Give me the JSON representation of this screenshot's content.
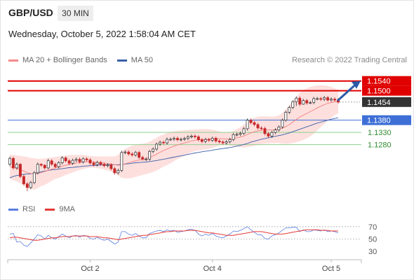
{
  "header": {
    "pair": "GBP/USD",
    "timeframe": "30 MIN",
    "datetime": "Wednesday, October 5, 2022 1:58:04 AM CET"
  },
  "legend": {
    "items": [
      {
        "label": "MA 20 + Bollinger Bands",
        "color": "#f58a8a"
      },
      {
        "label": "MA 50",
        "color": "#3b5ea8"
      }
    ],
    "credit": "Research © 2022 Trading Central"
  },
  "rsi_legend": {
    "items": [
      {
        "label": "RSI",
        "color": "#5b7ee0"
      },
      {
        "label": "9MA",
        "color": "#e53935"
      }
    ]
  },
  "chart_data": [
    {
      "type": "candlestick",
      "title": "GBP/USD",
      "ylim": [
        1.1056,
        1.1582
      ],
      "xticks": [
        {
          "label": "Oct 2",
          "index": 23
        },
        {
          "label": "Oct 4",
          "index": 58
        },
        {
          "label": "Oct 5",
          "index": 92
        }
      ],
      "levels": [
        {
          "value": 1.154,
          "label": "1.1540",
          "color": "#e00000",
          "style": "solid-tag"
        },
        {
          "value": 1.15,
          "label": "1.1500",
          "color": "#e00000",
          "style": "solid-tag"
        },
        {
          "value": 1.1454,
          "label": "1.1454",
          "color": "#333333",
          "style": "dotted-tag"
        },
        {
          "value": 1.138,
          "label": "1.1380",
          "color": "#3d6fd6",
          "style": "solid-tag"
        },
        {
          "value": 1.133,
          "label": "1.1330",
          "color": "#2e8b2e",
          "style": "text"
        },
        {
          "value": 1.128,
          "label": "1.1280",
          "color": "#2e8b2e",
          "style": "text"
        }
      ],
      "candles": {
        "open": [
          1.12,
          1.1224,
          1.1185,
          1.12,
          1.115,
          1.112,
          1.1105,
          1.1125,
          1.1165,
          1.12,
          1.1196,
          1.1185,
          1.1214,
          1.12,
          1.119,
          1.1206,
          1.1226,
          1.1214,
          1.1204,
          1.1216,
          1.122,
          1.121,
          1.1222,
          1.1218,
          1.1205,
          1.1198,
          1.1207,
          1.12,
          1.1194,
          1.1197,
          1.1182,
          1.1165,
          1.1175,
          1.1248,
          1.125,
          1.1242,
          1.1238,
          1.1248,
          1.1228,
          1.1221,
          1.1221,
          1.1252,
          1.1262,
          1.1282,
          1.129,
          1.1287,
          1.1302,
          1.1302,
          1.1306,
          1.13,
          1.1302,
          1.1305,
          1.1312,
          1.1315,
          1.1312,
          1.13,
          1.1293,
          1.1301,
          1.1298,
          1.1306,
          1.1295,
          1.1291,
          1.1287,
          1.1292,
          1.1301,
          1.1321,
          1.1322,
          1.1326,
          1.1345,
          1.138,
          1.137,
          1.1362,
          1.1348,
          1.1346,
          1.1325,
          1.1315,
          1.133,
          1.134,
          1.1352,
          1.138,
          1.1412,
          1.1432,
          1.1455,
          1.147,
          1.1445,
          1.146,
          1.145,
          1.1452,
          1.1468,
          1.1468,
          1.1465,
          1.1472,
          1.1462,
          1.1466,
          1.1462
        ],
        "close": [
          1.1224,
          1.1185,
          1.12,
          1.115,
          1.112,
          1.1105,
          1.1125,
          1.1165,
          1.12,
          1.1196,
          1.1185,
          1.1214,
          1.12,
          1.119,
          1.1206,
          1.1226,
          1.1214,
          1.1204,
          1.1216,
          1.122,
          1.121,
          1.1222,
          1.1218,
          1.1205,
          1.1198,
          1.1207,
          1.12,
          1.1194,
          1.1197,
          1.1182,
          1.1165,
          1.1175,
          1.1248,
          1.125,
          1.1242,
          1.1238,
          1.1248,
          1.1228,
          1.1221,
          1.1221,
          1.1252,
          1.1262,
          1.1282,
          1.129,
          1.1287,
          1.1302,
          1.1302,
          1.1306,
          1.13,
          1.1302,
          1.1305,
          1.1312,
          1.1315,
          1.1312,
          1.13,
          1.1293,
          1.1301,
          1.1298,
          1.1306,
          1.1295,
          1.1291,
          1.1287,
          1.1292,
          1.1301,
          1.1321,
          1.1322,
          1.1326,
          1.1345,
          1.138,
          1.137,
          1.1362,
          1.1348,
          1.1346,
          1.1325,
          1.1315,
          1.133,
          1.134,
          1.1352,
          1.138,
          1.1412,
          1.1432,
          1.1455,
          1.147,
          1.1445,
          1.146,
          1.145,
          1.1452,
          1.1468,
          1.1468,
          1.1465,
          1.1472,
          1.1462,
          1.1466,
          1.1462,
          1.1454
        ],
        "high": [
          1.1231,
          1.123,
          1.1207,
          1.1205,
          1.1157,
          1.1127,
          1.1132,
          1.1172,
          1.1207,
          1.1204,
          1.12,
          1.1222,
          1.1221,
          1.1207,
          1.1213,
          1.1233,
          1.1232,
          1.1221,
          1.1223,
          1.1227,
          1.1227,
          1.1229,
          1.1229,
          1.1225,
          1.1212,
          1.1214,
          1.1214,
          1.1207,
          1.1204,
          1.1204,
          1.1189,
          1.1182,
          1.1255,
          1.1257,
          1.1257,
          1.1249,
          1.1255,
          1.1255,
          1.1235,
          1.1228,
          1.1259,
          1.1269,
          1.1289,
          1.1297,
          1.1297,
          1.1309,
          1.1309,
          1.1313,
          1.1313,
          1.1309,
          1.1312,
          1.1319,
          1.1322,
          1.1322,
          1.1319,
          1.1307,
          1.1308,
          1.1308,
          1.1313,
          1.1313,
          1.1302,
          1.1298,
          1.1299,
          1.1308,
          1.1328,
          1.1329,
          1.1333,
          1.1352,
          1.1387,
          1.1387,
          1.1377,
          1.1369,
          1.1355,
          1.1353,
          1.1332,
          1.1337,
          1.1347,
          1.1359,
          1.1387,
          1.1419,
          1.1439,
          1.1462,
          1.1477,
          1.1477,
          1.1467,
          1.1467,
          1.1459,
          1.1475,
          1.1475,
          1.1475,
          1.1479,
          1.1479,
          1.1473,
          1.1473,
          1.1469
        ],
        "low": [
          1.1193,
          1.1178,
          1.1178,
          1.1143,
          1.1113,
          1.109,
          1.1098,
          1.1118,
          1.1158,
          1.1189,
          1.1178,
          1.1178,
          1.1193,
          1.1183,
          1.1183,
          1.1199,
          1.1207,
          1.1197,
          1.1197,
          1.1209,
          1.1203,
          1.1203,
          1.1211,
          1.1198,
          1.1191,
          1.1191,
          1.1193,
          1.1187,
          1.1187,
          1.1175,
          1.1158,
          1.1158,
          1.1168,
          1.1241,
          1.1235,
          1.1231,
          1.1231,
          1.1221,
          1.1214,
          1.1214,
          1.1214,
          1.1245,
          1.1255,
          1.1275,
          1.128,
          1.128,
          1.1295,
          1.1295,
          1.1293,
          1.1293,
          1.1295,
          1.1298,
          1.1305,
          1.1305,
          1.1293,
          1.1286,
          1.1286,
          1.1291,
          1.1291,
          1.1288,
          1.1284,
          1.128,
          1.128,
          1.1285,
          1.1294,
          1.1314,
          1.1315,
          1.1319,
          1.1338,
          1.1363,
          1.1355,
          1.1341,
          1.1339,
          1.1318,
          1.1308,
          1.1308,
          1.1323,
          1.1333,
          1.1345,
          1.1373,
          1.1405,
          1.1425,
          1.1438,
          1.1438,
          1.1443,
          1.1443,
          1.1445,
          1.1445,
          1.1461,
          1.1458,
          1.1458,
          1.1455,
          1.1455,
          1.1455,
          1.1447
        ]
      },
      "ma20": [
        1.119,
        1.1186,
        1.1183,
        1.1178,
        1.1172,
        1.1166,
        1.1162,
        1.116,
        1.1162,
        1.1166,
        1.117,
        1.1175,
        1.118,
        1.1185,
        1.1188,
        1.1192,
        1.1196,
        1.1199,
        1.1202,
        1.1205,
        1.1207,
        1.1209,
        1.121,
        1.121,
        1.1209,
        1.1208,
        1.1207,
        1.1205,
        1.1203,
        1.1201,
        1.1198,
        1.1196,
        1.1198,
        1.1202,
        1.1206,
        1.121,
        1.1214,
        1.1217,
        1.122,
        1.1223,
        1.1228,
        1.1234,
        1.1241,
        1.1249,
        1.1256,
        1.1262,
        1.1268,
        1.1274,
        1.1279,
        1.1283,
        1.1287,
        1.1291,
        1.1295,
        1.1298,
        1.13,
        1.1301,
        1.1302,
        1.1303,
        1.1304,
        1.1305,
        1.1305,
        1.1304,
        1.1303,
        1.1303,
        1.1305,
        1.1308,
        1.1311,
        1.1315,
        1.1322,
        1.1328,
        1.1333,
        1.1336,
        1.1339,
        1.134,
        1.134,
        1.134,
        1.1341,
        1.1343,
        1.1347,
        1.1354,
        1.1362,
        1.1372,
        1.1383,
        1.1393,
        1.14,
        1.1408,
        1.1415,
        1.1422,
        1.143,
        1.1437,
        1.1443,
        1.1449,
        1.1452,
        1.1455,
        1.1456
      ],
      "bb_upper": [
        1.124,
        1.1238,
        1.1236,
        1.1234,
        1.1232,
        1.123,
        1.1226,
        1.1224,
        1.1222,
        1.1222,
        1.1224,
        1.1226,
        1.1228,
        1.123,
        1.1232,
        1.1234,
        1.1236,
        1.1237,
        1.1238,
        1.1238,
        1.1238,
        1.1238,
        1.1236,
        1.1234,
        1.1232,
        1.1232,
        1.1232,
        1.1232,
        1.1232,
        1.1232,
        1.1232,
        1.1238,
        1.1252,
        1.1262,
        1.127,
        1.1276,
        1.128,
        1.1282,
        1.1284,
        1.1286,
        1.1292,
        1.13,
        1.1308,
        1.1316,
        1.1322,
        1.1328,
        1.1332,
        1.1335,
        1.1337,
        1.1338,
        1.1339,
        1.134,
        1.1341,
        1.1342,
        1.1343,
        1.1344,
        1.1344,
        1.1343,
        1.1341,
        1.1338,
        1.1334,
        1.133,
        1.1328,
        1.133,
        1.1336,
        1.1344,
        1.1352,
        1.1362,
        1.1374,
        1.1384,
        1.139,
        1.1394,
        1.1396,
        1.1396,
        1.1395,
        1.1394,
        1.1396,
        1.14,
        1.141,
        1.1425,
        1.144,
        1.1458,
        1.1476,
        1.1492,
        1.1502,
        1.151,
        1.1516,
        1.152,
        1.1522,
        1.1523,
        1.1522,
        1.152,
        1.1516,
        1.151,
        1.1504
      ],
      "bb_lower": [
        1.114,
        1.1134,
        1.113,
        1.1122,
        1.1112,
        1.1102,
        1.1098,
        1.1096,
        1.1102,
        1.111,
        1.1116,
        1.1124,
        1.1132,
        1.114,
        1.1144,
        1.115,
        1.1156,
        1.1161,
        1.1166,
        1.1172,
        1.1176,
        1.118,
        1.1184,
        1.1186,
        1.1186,
        1.1184,
        1.1182,
        1.1178,
        1.1174,
        1.117,
        1.1164,
        1.1154,
        1.1144,
        1.1142,
        1.1142,
        1.1144,
        1.1148,
        1.1152,
        1.1156,
        1.116,
        1.1164,
        1.1168,
        1.1174,
        1.1182,
        1.119,
        1.1196,
        1.1204,
        1.1213,
        1.1221,
        1.1228,
        1.1235,
        1.1242,
        1.1249,
        1.1254,
        1.1257,
        1.1258,
        1.126,
        1.1263,
        1.1267,
        1.1272,
        1.1276,
        1.1278,
        1.1278,
        1.1276,
        1.1274,
        1.1272,
        1.127,
        1.1268,
        1.127,
        1.1272,
        1.1276,
        1.1278,
        1.1282,
        1.1284,
        1.1285,
        1.1286,
        1.1286,
        1.1286,
        1.1284,
        1.1283,
        1.1284,
        1.1286,
        1.129,
        1.1294,
        1.1298,
        1.1306,
        1.1314,
        1.1324,
        1.1338,
        1.1351,
        1.1364,
        1.1378,
        1.1388,
        1.14,
        1.1408
      ],
      "ma50": [
        1.1145,
        1.115,
        1.1154,
        1.1157,
        1.1159,
        1.116,
        1.1161,
        1.1163,
        1.1166,
        1.1169,
        1.1172,
        1.1175,
        1.1177,
        1.1178,
        1.118,
        1.1182,
        1.1184,
        1.1186,
        1.1187,
        1.1189,
        1.119,
        1.1192,
        1.1193,
        1.1194,
        1.1195,
        1.1196,
        1.1197,
        1.1197,
        1.1198,
        1.1198,
        1.1198,
        1.1198,
        1.1199,
        1.1201,
        1.1202,
        1.1204,
        1.1206,
        1.1207,
        1.1208,
        1.1209,
        1.1211,
        1.1213,
        1.1215,
        1.1218,
        1.122,
        1.1223,
        1.1226,
        1.1229,
        1.1232,
        1.1234,
        1.1237,
        1.124,
        1.1243,
        1.1246,
        1.1248,
        1.1251,
        1.1253,
        1.1255,
        1.1257,
        1.126,
        1.1262,
        1.1264,
        1.1266,
        1.1268,
        1.1271,
        1.1274,
        1.1277,
        1.1281,
        1.1285,
        1.129,
        1.1294,
        1.1298,
        1.1302,
        1.1305,
        1.1308,
        1.1311,
        1.1314,
        1.1317,
        1.132,
        1.1324,
        1.1328,
        1.1333,
        1.1338,
        1.1343,
        1.1348,
        1.1353,
        1.1358,
        1.1363,
        1.1368,
        1.1372,
        1.1376,
        1.138,
        1.1384,
        1.1387,
        1.139
      ],
      "projection": {
        "from_index": 94,
        "from_value": 1.1462,
        "to_value": 1.154
      }
    },
    {
      "type": "line",
      "title": "RSI",
      "ylim": [
        20,
        80
      ],
      "yticks": [
        70,
        50,
        30
      ],
      "reference_lines": [
        70,
        50
      ],
      "series": [
        {
          "name": "RSI",
          "color": "#5b7ee0",
          "values": [
            58,
            59,
            45,
            46,
            40,
            38,
            44,
            50,
            57,
            55,
            50,
            56,
            52,
            50,
            54,
            58,
            55,
            52,
            55,
            56,
            53,
            56,
            55,
            51,
            50,
            53,
            50,
            48,
            50,
            46,
            42,
            45,
            62,
            62,
            58,
            56,
            59,
            55,
            52,
            52,
            59,
            61,
            63,
            64,
            62,
            65,
            63,
            64,
            61,
            62,
            63,
            65,
            66,
            64,
            58,
            55,
            58,
            56,
            59,
            55,
            53,
            52,
            55,
            58,
            63,
            62,
            64,
            67,
            70,
            65,
            61,
            57,
            57,
            51,
            50,
            55,
            57,
            60,
            64,
            68,
            68,
            69,
            69,
            62,
            65,
            62,
            62,
            65,
            64,
            63,
            65,
            62,
            63,
            62,
            60
          ]
        },
        {
          "name": "9MA",
          "color": "#e53935",
          "values": [
            52,
            53,
            53,
            52,
            51,
            50,
            49,
            48,
            48,
            49,
            50,
            51,
            52,
            52,
            53,
            54,
            54,
            54,
            55,
            55,
            55,
            55,
            55,
            54,
            54,
            54,
            53,
            52,
            52,
            51,
            50,
            49,
            50,
            51,
            52,
            53,
            54,
            55,
            56,
            56,
            57,
            58,
            59,
            60,
            61,
            62,
            62,
            63,
            63,
            63,
            63,
            64,
            64,
            64,
            63,
            62,
            61,
            60,
            60,
            59,
            58,
            57,
            56,
            56,
            56,
            57,
            58,
            59,
            60,
            61,
            62,
            62,
            62,
            61,
            60,
            59,
            58,
            58,
            58,
            59,
            60,
            61,
            62,
            63,
            64,
            65,
            65,
            65,
            65,
            64,
            64,
            64,
            63,
            63,
            63
          ]
        }
      ]
    }
  ]
}
